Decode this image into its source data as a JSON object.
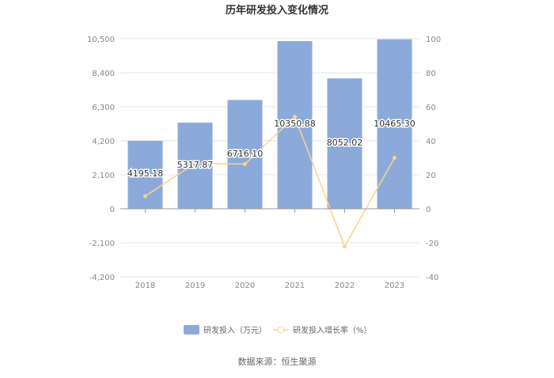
{
  "chart_data": {
    "type": "bar+line",
    "title": "历年研发投入变化情况",
    "categories": [
      "2018",
      "2019",
      "2020",
      "2021",
      "2022",
      "2023"
    ],
    "series": [
      {
        "name": "研发投入（万元）",
        "type": "bar",
        "axis": "left",
        "color": "#8baad9",
        "values": [
          4195.18,
          5317.87,
          6716.1,
          10350.88,
          8052.02,
          10465.3
        ],
        "labels": [
          "4195.18",
          "5317.87",
          "6716.10",
          "10350.88",
          "8052.02",
          "10465.30"
        ]
      },
      {
        "name": "研发投入增长率（%）",
        "type": "line",
        "axis": "right",
        "color": "#fdd28a",
        "values": [
          7.4,
          26.76,
          26.29,
          54.12,
          -22.21,
          29.97
        ]
      }
    ],
    "left_axis": {
      "ylim": [
        -4200,
        10500
      ],
      "ticks": [
        "-4,200",
        "-2,100",
        "0",
        "2,100",
        "4,200",
        "6,300",
        "8,400",
        "10,500"
      ],
      "tick_values": [
        -4200,
        -2100,
        0,
        2100,
        4200,
        6300,
        8400,
        10500
      ]
    },
    "right_axis": {
      "ylim": [
        -40,
        100
      ],
      "ticks": [
        "-40",
        "-20",
        "0",
        "20",
        "40",
        "60",
        "80",
        "100"
      ]
    },
    "grid": true,
    "legend": "bottom"
  },
  "source": "数据来源：恒生聚源"
}
